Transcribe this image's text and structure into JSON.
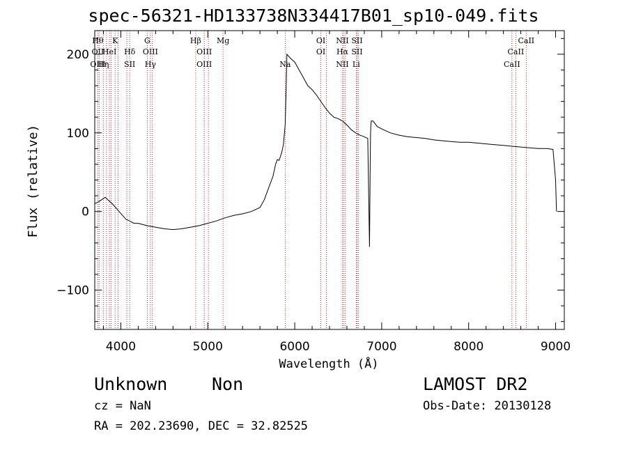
{
  "title": "spec-56321-HD133738N334417B01_sp10-049.fits",
  "info": {
    "class": "Unknown",
    "subclass": "Non",
    "cz": "cz = NaN",
    "radec": "RA = 202.23690, DEC =  32.82525",
    "survey": "LAMOST DR2",
    "obs_date": "Obs-Date: 20130128"
  },
  "chart_data": {
    "type": "line",
    "title": "spec-56321-HD133738N334417B01_sp10-049.fits",
    "xlabel": "Wavelength (Å)",
    "ylabel": "Flux (relative)",
    "xlim": [
      3700,
      9100
    ],
    "ylim": [
      -150,
      230
    ],
    "xticks": [
      4000,
      5000,
      6000,
      7000,
      8000,
      9000
    ],
    "yticks": [
      -100,
      0,
      100,
      200
    ],
    "grid": false,
    "line_color": "#000000",
    "marker_color": "#a00000",
    "series": [
      {
        "x": [
          3700,
          3740,
          3780,
          3820,
          3860,
          3900,
          3940,
          3980,
          4020,
          4060,
          4100,
          4150,
          4200,
          4300,
          4400,
          4500,
          4600,
          4700,
          4800,
          4900,
          5000,
          5100,
          5200,
          5300,
          5400,
          5500,
          5600,
          5650,
          5700,
          5750,
          5780,
          5800,
          5820,
          5850,
          5870,
          5890,
          5900,
          5910,
          5950,
          6000,
          6050,
          6100,
          6150,
          6200,
          6250,
          6300,
          6350,
          6400,
          6450,
          6500,
          6550,
          6600,
          6650,
          6700,
          6750,
          6800,
          6840,
          6860,
          6868,
          6872,
          6876,
          6880,
          6900,
          6950,
          7000,
          7100,
          7200,
          7300,
          7400,
          7500,
          7600,
          7700,
          7800,
          7900,
          8000,
          8100,
          8200,
          8300,
          8400,
          8500,
          8600,
          8700,
          8800,
          8900,
          8970,
          9000,
          9010
        ],
        "y": [
          10,
          12,
          15,
          18,
          14,
          10,
          5,
          0,
          -5,
          -10,
          -12,
          -15,
          -15,
          -18,
          -20,
          -22,
          -23,
          -22,
          -20,
          -18,
          -15,
          -12,
          -8,
          -5,
          -3,
          0,
          5,
          15,
          30,
          45,
          60,
          66,
          65,
          75,
          85,
          110,
          150,
          200,
          195,
          190,
          180,
          170,
          160,
          155,
          148,
          140,
          132,
          125,
          120,
          118,
          115,
          110,
          104,
          100,
          97,
          95,
          93,
          -45,
          60,
          100,
          110,
          115,
          115,
          108,
          105,
          100,
          97,
          95,
          94,
          93,
          91,
          90,
          89,
          88,
          88,
          87,
          86,
          85,
          84,
          83,
          82,
          81,
          80,
          80,
          79,
          40,
          0
        ]
      }
    ],
    "lines": [
      {
        "x": 3735,
        "labels": [
          "H&#952;",
          "OII",
          "OIII"
        ]
      },
      {
        "x": 3750,
        "labels": []
      },
      {
        "x": 3798,
        "labels": [
          "",
          "",
          "H&#951;"
        ]
      },
      {
        "x": 3835,
        "labels": []
      },
      {
        "x": 3869,
        "labels": [
          "",
          "HeI",
          ""
        ]
      },
      {
        "x": 3889,
        "labels": []
      },
      {
        "x": 3934,
        "labels": [
          "K",
          "",
          ""
        ]
      },
      {
        "x": 3968,
        "labels": []
      },
      {
        "x": 4069,
        "labels": []
      },
      {
        "x": 4102,
        "labels": [
          "",
          "H&#948;",
          "SII"
        ]
      },
      {
        "x": 4304,
        "labels": [
          "G",
          "",
          ""
        ]
      },
      {
        "x": 4340,
        "labels": [
          "",
          "OIII",
          "H&#947;"
        ]
      },
      {
        "x": 4363,
        "labels": []
      },
      {
        "x": 4861,
        "labels": [
          "H&#946;",
          "",
          ""
        ]
      },
      {
        "x": 4959,
        "labels": [
          "",
          "OIII",
          "OIII"
        ]
      },
      {
        "x": 5007,
        "labels": []
      },
      {
        "x": 5175,
        "labels": [
          "Mg",
          "",
          ""
        ]
      },
      {
        "x": 5890,
        "labels": [
          "",
          "",
          "Na"
        ]
      },
      {
        "x": 6300,
        "labels": [
          "OI",
          "OI",
          ""
        ]
      },
      {
        "x": 6364,
        "labels": []
      },
      {
        "x": 6548,
        "labels": [
          "NII",
          "H&#945;",
          "NII"
        ]
      },
      {
        "x": 6563,
        "labels": []
      },
      {
        "x": 6583,
        "labels": []
      },
      {
        "x": 6707,
        "labels": [
          "",
          "",
          "Li"
        ]
      },
      {
        "x": 6716,
        "labels": [
          "SII",
          "SII",
          ""
        ]
      },
      {
        "x": 6731,
        "labels": []
      },
      {
        "x": 8498,
        "labels": [
          "",
          "",
          "CaII"
        ]
      },
      {
        "x": 8542,
        "labels": [
          "",
          "CaII",
          ""
        ]
      },
      {
        "x": 8662,
        "labels": [
          "CaII",
          "",
          ""
        ]
      }
    ]
  }
}
